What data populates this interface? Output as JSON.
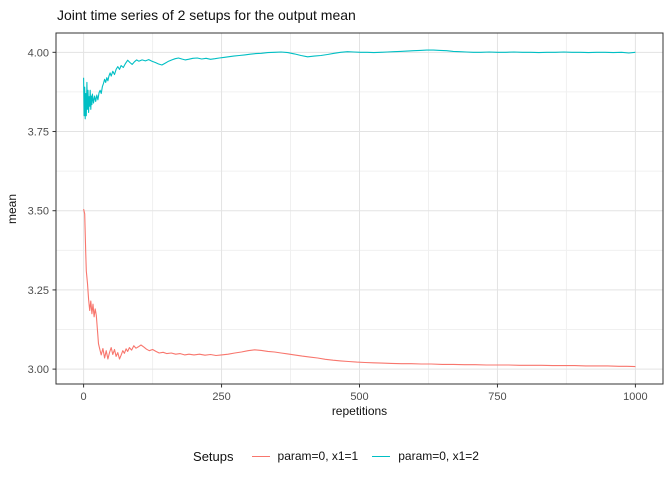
{
  "chart_data": {
    "type": "line",
    "title": "Joint time series of 2 setups for the output mean",
    "xlabel": "repetitions",
    "ylabel": "mean",
    "legend_title": "Setups",
    "legend_position": "bottom",
    "grid": true,
    "xlim": [
      -50,
      1050
    ],
    "ylim": [
      2.953,
      4.061
    ],
    "x_ticks": [
      {
        "v": 0,
        "label": "0"
      },
      {
        "v": 250,
        "label": "250"
      },
      {
        "v": 500,
        "label": "500"
      },
      {
        "v": 750,
        "label": "750"
      },
      {
        "v": 1000,
        "label": "1000"
      }
    ],
    "y_ticks": [
      {
        "v": 4.0,
        "label": "4.00"
      },
      {
        "v": 3.75,
        "label": "3.75"
      },
      {
        "v": 3.5,
        "label": "3.50"
      },
      {
        "v": 3.25,
        "label": "3.25"
      },
      {
        "v": 3.0,
        "label": "3.00"
      }
    ],
    "x_minor_ticks": [
      125,
      375,
      625,
      875
    ],
    "y_minor_ticks": [
      3.125,
      3.375,
      3.625,
      3.875
    ],
    "colors": {
      "grid_major": "#e3e3e3",
      "grid_minor": "#f0f0f0",
      "panel_border": "#333333",
      "tick_mark": "#333333",
      "tick_label": "#4d4d4d",
      "panel_bg": "#ffffff"
    },
    "series": [
      {
        "name": "param=0, x1=1",
        "color": "#F8766D",
        "points": [
          [
            0,
            3.505
          ],
          [
            2,
            3.49
          ],
          [
            3,
            3.43
          ],
          [
            4,
            3.36
          ],
          [
            5,
            3.31
          ],
          [
            7,
            3.27
          ],
          [
            9,
            3.22
          ],
          [
            11,
            3.185
          ],
          [
            13,
            3.215
          ],
          [
            15,
            3.175
          ],
          [
            17,
            3.205
          ],
          [
            19,
            3.165
          ],
          [
            21,
            3.19
          ],
          [
            23,
            3.17
          ],
          [
            25,
            3.125
          ],
          [
            27,
            3.08
          ],
          [
            29,
            3.065
          ],
          [
            32,
            3.045
          ],
          [
            35,
            3.065
          ],
          [
            38,
            3.035
          ],
          [
            41,
            3.058
          ],
          [
            44,
            3.032
          ],
          [
            47,
            3.052
          ],
          [
            50,
            3.068
          ],
          [
            53,
            3.046
          ],
          [
            56,
            3.062
          ],
          [
            59,
            3.04
          ],
          [
            62,
            3.052
          ],
          [
            65,
            3.032
          ],
          [
            68,
            3.044
          ],
          [
            71,
            3.058
          ],
          [
            74,
            3.05
          ],
          [
            77,
            3.064
          ],
          [
            80,
            3.056
          ],
          [
            83,
            3.068
          ],
          [
            87,
            3.06
          ],
          [
            91,
            3.074
          ],
          [
            95,
            3.066
          ],
          [
            99,
            3.07
          ],
          [
            104,
            3.076
          ],
          [
            109,
            3.07
          ],
          [
            114,
            3.063
          ],
          [
            119,
            3.058
          ],
          [
            125,
            3.062
          ],
          [
            131,
            3.056
          ],
          [
            137,
            3.051
          ],
          [
            144,
            3.053
          ],
          [
            151,
            3.049
          ],
          [
            159,
            3.051
          ],
          [
            167,
            3.047
          ],
          [
            175,
            3.049
          ],
          [
            183,
            3.045
          ],
          [
            191,
            3.047
          ],
          [
            200,
            3.045
          ],
          [
            210,
            3.047
          ],
          [
            220,
            3.044
          ],
          [
            230,
            3.046
          ],
          [
            240,
            3.043
          ],
          [
            250,
            3.045
          ],
          [
            262,
            3.047
          ],
          [
            274,
            3.051
          ],
          [
            286,
            3.054
          ],
          [
            298,
            3.058
          ],
          [
            310,
            3.061
          ],
          [
            322,
            3.059
          ],
          [
            334,
            3.056
          ],
          [
            346,
            3.054
          ],
          [
            358,
            3.051
          ],
          [
            370,
            3.048
          ],
          [
            382,
            3.045
          ],
          [
            396,
            3.041
          ],
          [
            410,
            3.038
          ],
          [
            424,
            3.035
          ],
          [
            438,
            3.031
          ],
          [
            452,
            3.028
          ],
          [
            466,
            3.026
          ],
          [
            480,
            3.024
          ],
          [
            495,
            3.022
          ],
          [
            510,
            3.021
          ],
          [
            525,
            3.02
          ],
          [
            540,
            3.019
          ],
          [
            558,
            3.018
          ],
          [
            576,
            3.017
          ],
          [
            594,
            3.017
          ],
          [
            612,
            3.016
          ],
          [
            630,
            3.016
          ],
          [
            650,
            3.015
          ],
          [
            670,
            3.015
          ],
          [
            690,
            3.014
          ],
          [
            710,
            3.014
          ],
          [
            730,
            3.013
          ],
          [
            750,
            3.013
          ],
          [
            770,
            3.013
          ],
          [
            790,
            3.012
          ],
          [
            810,
            3.012
          ],
          [
            830,
            3.012
          ],
          [
            850,
            3.011
          ],
          [
            870,
            3.011
          ],
          [
            890,
            3.011
          ],
          [
            910,
            3.01
          ],
          [
            930,
            3.01
          ],
          [
            950,
            3.01
          ],
          [
            970,
            3.009
          ],
          [
            985,
            3.009
          ],
          [
            1000,
            3.008
          ]
        ]
      },
      {
        "name": "param=0, x1=2",
        "color": "#00BFC4",
        "points": [
          [
            0,
            3.92
          ],
          [
            1,
            3.8
          ],
          [
            2,
            3.89
          ],
          [
            3,
            3.79
          ],
          [
            4,
            3.87
          ],
          [
            5,
            3.8
          ],
          [
            6,
            3.905
          ],
          [
            7,
            3.82
          ],
          [
            8,
            3.88
          ],
          [
            9,
            3.81
          ],
          [
            10,
            3.86
          ],
          [
            11,
            3.83
          ],
          [
            12,
            3.88
          ],
          [
            13,
            3.82
          ],
          [
            14,
            3.862
          ],
          [
            15,
            3.835
          ],
          [
            16,
            3.868
          ],
          [
            18,
            3.84
          ],
          [
            20,
            3.862
          ],
          [
            22,
            3.845
          ],
          [
            24,
            3.865
          ],
          [
            26,
            3.85
          ],
          [
            28,
            3.872
          ],
          [
            30,
            3.88
          ],
          [
            32,
            3.87
          ],
          [
            34,
            3.892
          ],
          [
            36,
            3.902
          ],
          [
            38,
            3.915
          ],
          [
            40,
            3.905
          ],
          [
            42,
            3.92
          ],
          [
            44,
            3.91
          ],
          [
            46,
            3.926
          ],
          [
            48,
            3.935
          ],
          [
            50,
            3.925
          ],
          [
            53,
            3.94
          ],
          [
            56,
            3.93
          ],
          [
            59,
            3.946
          ],
          [
            62,
            3.955
          ],
          [
            65,
            3.946
          ],
          [
            68,
            3.958
          ],
          [
            72,
            3.952
          ],
          [
            76,
            3.965
          ],
          [
            80,
            3.975
          ],
          [
            84,
            3.968
          ],
          [
            88,
            3.962
          ],
          [
            92,
            3.97
          ],
          [
            96,
            3.976
          ],
          [
            100,
            3.972
          ],
          [
            106,
            3.976
          ],
          [
            112,
            3.973
          ],
          [
            118,
            3.977
          ],
          [
            124,
            3.972
          ],
          [
            130,
            3.968
          ],
          [
            136,
            3.963
          ],
          [
            142,
            3.96
          ],
          [
            148,
            3.966
          ],
          [
            154,
            3.972
          ],
          [
            160,
            3.976
          ],
          [
            166,
            3.98
          ],
          [
            172,
            3.982
          ],
          [
            178,
            3.979
          ],
          [
            184,
            3.976
          ],
          [
            190,
            3.978
          ],
          [
            198,
            3.981
          ],
          [
            206,
            3.982
          ],
          [
            214,
            3.979
          ],
          [
            222,
            3.981
          ],
          [
            230,
            3.978
          ],
          [
            238,
            3.98
          ],
          [
            246,
            3.982
          ],
          [
            254,
            3.984
          ],
          [
            262,
            3.986
          ],
          [
            272,
            3.988
          ],
          [
            282,
            3.99
          ],
          [
            292,
            3.992
          ],
          [
            302,
            3.994
          ],
          [
            312,
            3.996
          ],
          [
            322,
            3.997
          ],
          [
            334,
            3.999
          ],
          [
            346,
            4.0
          ],
          [
            358,
            4.001
          ],
          [
            370,
            3.999
          ],
          [
            382,
            3.995
          ],
          [
            394,
            3.99
          ],
          [
            406,
            3.986
          ],
          [
            418,
            3.988
          ],
          [
            430,
            3.99
          ],
          [
            442,
            3.993
          ],
          [
            454,
            3.997
          ],
          [
            466,
            4.0
          ],
          [
            478,
            4.002
          ],
          [
            490,
            4.001
          ],
          [
            502,
            4.0
          ],
          [
            514,
            4.0
          ],
          [
            526,
            3.999
          ],
          [
            538,
            4.0
          ],
          [
            550,
            4.001
          ],
          [
            562,
            4.002
          ],
          [
            574,
            4.003
          ],
          [
            586,
            4.004
          ],
          [
            598,
            4.005
          ],
          [
            610,
            4.006
          ],
          [
            622,
            4.007
          ],
          [
            634,
            4.007
          ],
          [
            646,
            4.006
          ],
          [
            658,
            4.005
          ],
          [
            670,
            4.003
          ],
          [
            682,
            4.002
          ],
          [
            694,
            4.001
          ],
          [
            706,
            4.0
          ],
          [
            720,
            4.0
          ],
          [
            735,
            4.001
          ],
          [
            750,
            4.0
          ],
          [
            765,
            4.0
          ],
          [
            780,
            4.001
          ],
          [
            795,
            4.0
          ],
          [
            810,
            4.0
          ],
          [
            825,
            3.999
          ],
          [
            840,
            4.0
          ],
          [
            855,
            4.0
          ],
          [
            870,
            4.001
          ],
          [
            885,
            4.0
          ],
          [
            900,
            4.0
          ],
          [
            915,
            3.999
          ],
          [
            930,
            4.0
          ],
          [
            945,
            4.0
          ],
          [
            960,
            3.999
          ],
          [
            975,
            4.0
          ],
          [
            988,
            3.998
          ],
          [
            1000,
            4.0
          ]
        ]
      }
    ]
  }
}
